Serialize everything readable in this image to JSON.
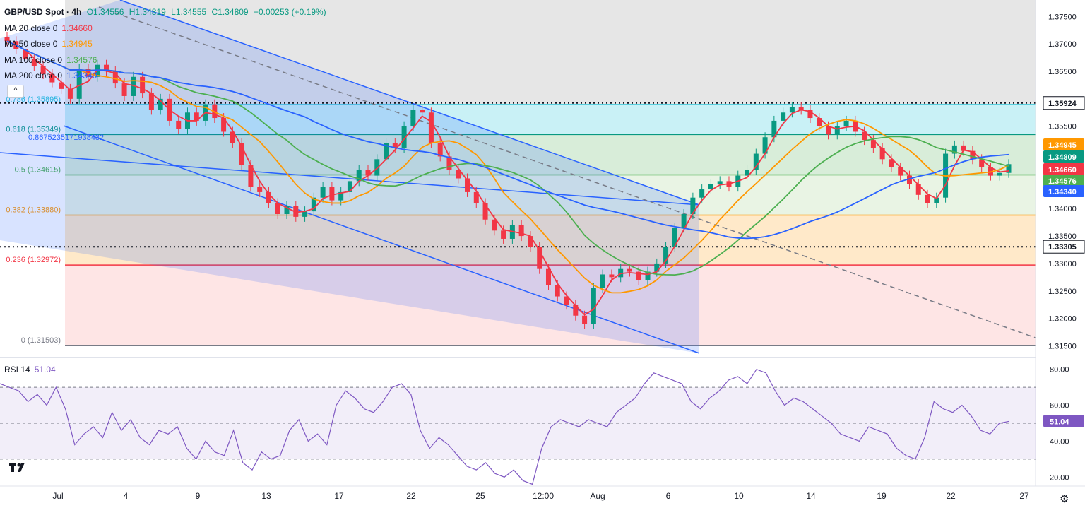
{
  "legend": {
    "symbol": "GBP/USD Spot · 4h",
    "open": "O1.34556",
    "high": "H1.34819",
    "low": "L1.34555",
    "close": "C1.34809",
    "change": "+0.00253 (+0.19%)",
    "ma20": {
      "label": "MA 20 close 0",
      "value": "1.34660",
      "color": "#f23645"
    },
    "ma50": {
      "label": "MA 50 close 0",
      "value": "1.34945",
      "color": "#ff9800"
    },
    "ma100": {
      "label": "MA 100 close 0",
      "value": "1.34576",
      "color": "#4caf50"
    },
    "ma200": {
      "label": "MA 200 close 0",
      "value": "1.34340",
      "color": "#2962ff"
    }
  },
  "rsi_label": {
    "name": "RSI 14",
    "value": "51.04"
  },
  "chart_data": {
    "type": "candlestick",
    "symbol": "GBP/USD Spot",
    "timeframe": "4h",
    "ylim": [
      1.313,
      1.378
    ],
    "price_ticks": [
      "1.37500",
      "1.37000",
      "1.36500",
      "1.36000",
      "1.35500",
      "1.35000",
      "1.34500",
      "1.34000",
      "1.33500",
      "1.33000",
      "1.32500",
      "1.32000",
      "1.31500"
    ],
    "x_ticks": [
      "Jul",
      "4",
      "9",
      "13",
      "17",
      "22",
      "25",
      "12:00",
      "Aug",
      "6",
      "10",
      "14",
      "19",
      "22",
      "27"
    ],
    "fib_levels": [
      {
        "label": "0.786 (1.35895)",
        "price": 1.35895,
        "color": "#26c6da"
      },
      {
        "label": "0.618 (1.35349)",
        "price": 1.35349,
        "color": "#089981"
      },
      {
        "label": "0.8675235171938432",
        "price": 1.352,
        "color": "#2962ff"
      },
      {
        "label": "0.5 (1.34615)",
        "price": 1.34615,
        "color": "#4caf50"
      },
      {
        "label": "0.382 (1.33880)",
        "price": 1.3388,
        "color": "#ff9800"
      },
      {
        "label": "0.236 (1.32972)",
        "price": 1.32972,
        "color": "#f23645"
      },
      {
        "label": "0 (1.31503)",
        "price": 1.31503,
        "color": "#787b86"
      }
    ],
    "horizontal_lines": [
      {
        "label": "1.35924",
        "price": 1.35924,
        "style": "dotted"
      },
      {
        "label": "1.33305",
        "price": 1.33305,
        "style": "dotted"
      }
    ],
    "price_badges": [
      {
        "label": "1.34945",
        "price": 1.34945,
        "color": "#ff9800"
      },
      {
        "label": "1.34809",
        "price": 1.34809,
        "color": "#089981"
      },
      {
        "label": "1.34660",
        "price": 1.3466,
        "color": "#f23645"
      },
      {
        "label": "1.34576",
        "price": 1.34576,
        "color": "#4caf50"
      },
      {
        "label": "1.34340",
        "price": 1.3434,
        "color": "#2962ff"
      }
    ],
    "candles_close": [
      1.3705,
      1.369,
      1.3672,
      1.366,
      1.3645,
      1.363,
      1.3618,
      1.36,
      1.3655,
      1.364,
      1.3662,
      1.365,
      1.3628,
      1.3605,
      1.364,
      1.361,
      1.358,
      1.36,
      1.356,
      1.3545,
      1.3575,
      1.356,
      1.359,
      1.3565,
      1.354,
      1.352,
      1.348,
      1.344,
      1.343,
      1.341,
      1.339,
      1.3405,
      1.3385,
      1.3395,
      1.342,
      1.344,
      1.3415,
      1.343,
      1.345,
      1.347,
      1.346,
      1.349,
      1.352,
      1.351,
      1.355,
      1.358,
      1.3575,
      1.352,
      1.3495,
      1.347,
      1.3455,
      1.343,
      1.341,
      1.338,
      1.336,
      1.3345,
      1.337,
      1.335,
      1.333,
      1.329,
      1.326,
      1.324,
      1.3225,
      1.3205,
      1.319,
      1.3255,
      1.328,
      1.3275,
      1.329,
      1.3285,
      1.327,
      1.3285,
      1.33,
      1.333,
      1.3365,
      1.339,
      1.342,
      1.3435,
      1.3445,
      1.345,
      1.344,
      1.346,
      1.347,
      1.35,
      1.353,
      1.356,
      1.3575,
      1.3585,
      1.358,
      1.3565,
      1.355,
      1.3535,
      1.355,
      1.356,
      1.354,
      1.3525,
      1.351,
      1.349,
      1.3475,
      1.346,
      1.3445,
      1.3425,
      1.341,
      1.342,
      1.35,
      1.3515,
      1.3505,
      1.349,
      1.3475,
      1.346,
      1.3465,
      1.3481
    ],
    "rsi": {
      "name": "RSI 14",
      "value": 51.04,
      "ylim": [
        15,
        85
      ],
      "ticks": [
        "80.00",
        "60.00",
        "40.00",
        "20.00"
      ],
      "bands": [
        30,
        50,
        70
      ],
      "values": [
        72,
        70,
        68,
        62,
        66,
        60,
        70,
        58,
        38,
        44,
        48,
        42,
        56,
        46,
        52,
        42,
        38,
        46,
        44,
        48,
        36,
        30,
        40,
        34,
        32,
        46,
        28,
        24,
        34,
        30,
        32,
        46,
        52,
        40,
        44,
        38,
        60,
        68,
        64,
        58,
        56,
        62,
        70,
        72,
        66,
        46,
        36,
        42,
        38,
        32,
        26,
        24,
        28,
        22,
        20,
        24,
        18,
        16,
        36,
        48,
        52,
        50,
        48,
        52,
        50,
        48,
        56,
        60,
        64,
        72,
        78,
        76,
        74,
        72,
        62,
        58,
        64,
        68,
        74,
        76,
        72,
        80,
        78,
        68,
        60,
        64,
        62,
        58,
        54,
        50,
        44,
        42,
        40,
        48,
        46,
        44,
        36,
        32,
        30,
        42,
        62,
        58,
        56,
        60,
        54,
        46,
        44,
        50,
        51
      ]
    }
  }
}
